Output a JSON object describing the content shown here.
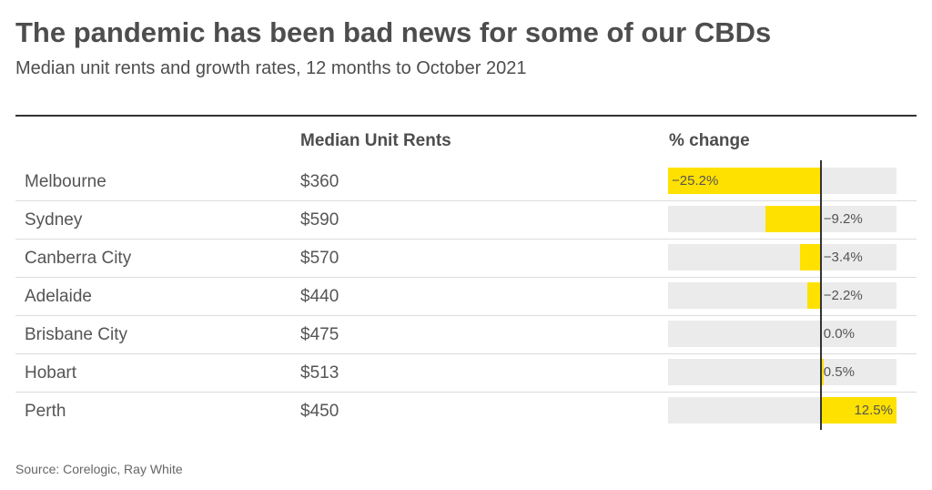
{
  "header": {
    "title": "The pandemic has been bad news for some of our CBDs",
    "subtitle": "Median unit rents and growth rates, 12 months to October 2021"
  },
  "columns": {
    "rent": "Median Unit Rents",
    "change": "% change"
  },
  "source": "Source: Corelogic, Ray White",
  "colors": {
    "bar": "#ffe100",
    "track": "#ebebeb",
    "zero_line": "#333333"
  },
  "chart_data": {
    "type": "table",
    "categories": [
      "Melbourne",
      "Sydney",
      "Canberra City",
      "Adelaide",
      "Brisbane City",
      "Hobart",
      "Perth"
    ],
    "rent_labels": [
      "$360",
      "$590",
      "$570",
      "$440",
      "$475",
      "$513",
      "$450"
    ],
    "rents": [
      360,
      590,
      570,
      440,
      475,
      513,
      450
    ],
    "change_labels": [
      "−25.2%",
      "−9.2%",
      "−3.4%",
      "−2.2%",
      "0.0%",
      "0.5%",
      "12.5%"
    ],
    "changes": [
      -25.2,
      -9.2,
      -3.4,
      -2.2,
      0.0,
      0.5,
      12.5
    ],
    "change_range": [
      -25.2,
      12.5
    ]
  }
}
